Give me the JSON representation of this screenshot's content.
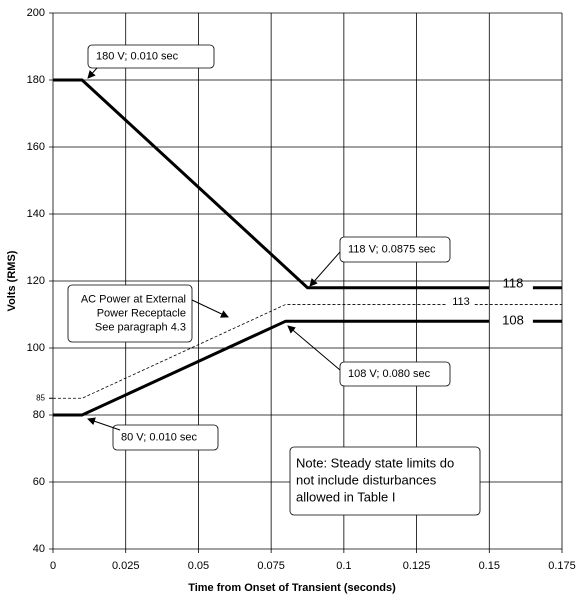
{
  "chart_data": {
    "type": "line",
    "xlabel": "Time from Onset of Transient (seconds)",
    "ylabel": "Volts (RMS)",
    "xlim": [
      0,
      0.175
    ],
    "ylim": [
      40,
      200
    ],
    "xticks": [
      0,
      0.025,
      0.05,
      0.075,
      0.1,
      0.125,
      0.15,
      0.175
    ],
    "yticks": [
      40,
      60,
      80,
      100,
      120,
      140,
      160,
      180,
      200
    ],
    "extra_yticks": [
      85
    ],
    "grid": true,
    "series": [
      {
        "x": [
          0,
          0.01,
          0.0875,
          0.15,
          0.1575,
          0.165,
          0.175
        ],
        "values": [
          180,
          180,
          118,
          118,
          null,
          118,
          118
        ],
        "color": "#000000",
        "style": "solid"
      },
      {
        "x": [
          0,
          0.01,
          0.08,
          0.15,
          0.1575,
          0.165,
          0.175
        ],
        "values": [
          80,
          80,
          108,
          108,
          null,
          108,
          108
        ],
        "color": "#000000",
        "style": "solid"
      },
      {
        "x": [
          0,
          0.01,
          0.08,
          0.135,
          0.14,
          0.145,
          0.175
        ],
        "values": [
          85,
          85,
          113,
          113,
          null,
          113,
          113
        ],
        "color": "#000000",
        "style": "dashed"
      }
    ],
    "line_labels": [
      "118",
      "108",
      "113"
    ],
    "annotations": [
      {
        "lines": [
          "180 V; 0.010 sec"
        ]
      },
      {
        "lines": [
          "118 V; 0.0875 sec"
        ]
      },
      {
        "lines": [
          "AC Power at External",
          "Power Receptacle",
          "See paragraph 4.3"
        ]
      },
      {
        "lines": [
          "108 V; 0.080 sec"
        ]
      },
      {
        "lines": [
          "80 V; 0.010 sec"
        ]
      },
      {
        "lines": [
          "Note: Steady state limits do",
          "not include disturbances",
          "allowed in Table I"
        ]
      }
    ]
  }
}
